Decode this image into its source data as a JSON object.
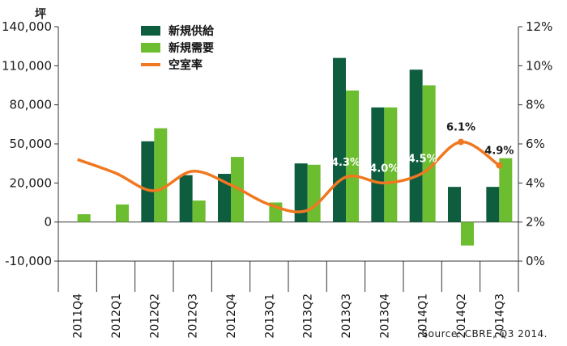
{
  "chart_data": {
    "type": "bar",
    "y_unit": "坪",
    "categories": [
      "2011Q4",
      "2012Q1",
      "2012Q2",
      "2012Q3",
      "2012Q4",
      "2013Q1",
      "2013Q2",
      "2013Q3",
      "2013Q4",
      "2014Q1",
      "2014Q2",
      "2014Q3"
    ],
    "series": [
      {
        "name": "新規供給",
        "type": "bar",
        "axis": "left",
        "color": "#0e5d3f",
        "values": [
          0,
          0,
          52000,
          26000,
          27000,
          0,
          35000,
          116000,
          78000,
          107000,
          18000,
          18000
        ]
      },
      {
        "name": "新規需要",
        "type": "bar",
        "axis": "left",
        "color": "#6cbd2f",
        "values": [
          4000,
          9000,
          62000,
          11000,
          40000,
          10000,
          34000,
          91000,
          78000,
          95000,
          -6000,
          39000
        ]
      },
      {
        "name": "空室率",
        "type": "line",
        "axis": "right",
        "color": "#f07820",
        "values": [
          5.2,
          4.5,
          3.6,
          4.6,
          3.9,
          2.9,
          2.6,
          4.3,
          4.0,
          4.5,
          6.1,
          4.9
        ]
      }
    ],
    "y_left": {
      "min": -10000,
      "max": 140000,
      "ticks": [
        -10000,
        0,
        20000,
        50000,
        80000,
        110000,
        140000
      ],
      "tick_labels": [
        "-10,000",
        "0",
        "20,000",
        "50,000",
        "80,000",
        "110,000",
        "140,000"
      ]
    },
    "y_right": {
      "min": 0,
      "max": 12,
      "ticks": [
        0,
        2,
        4,
        6,
        8,
        10,
        12
      ],
      "tick_labels": [
        "0%",
        "2%",
        "4%",
        "6%",
        "8%",
        "10%",
        "12%"
      ]
    },
    "annotations": [
      {
        "category": "2013Q3",
        "text": "4.3%",
        "color": "#ffffff"
      },
      {
        "category": "2013Q4",
        "text": "4.0%",
        "color": "#ffffff"
      },
      {
        "category": "2014Q1",
        "text": "4.5%",
        "color": "#ffffff"
      },
      {
        "category": "2014Q2",
        "text": "6.1%",
        "color": "#1a1a1a"
      },
      {
        "category": "2014Q3",
        "text": "4.9%",
        "color": "#1a1a1a"
      }
    ],
    "legend": {
      "position": "top-left"
    },
    "grid": false
  },
  "source": "Source: CBRE, Q3 2014."
}
